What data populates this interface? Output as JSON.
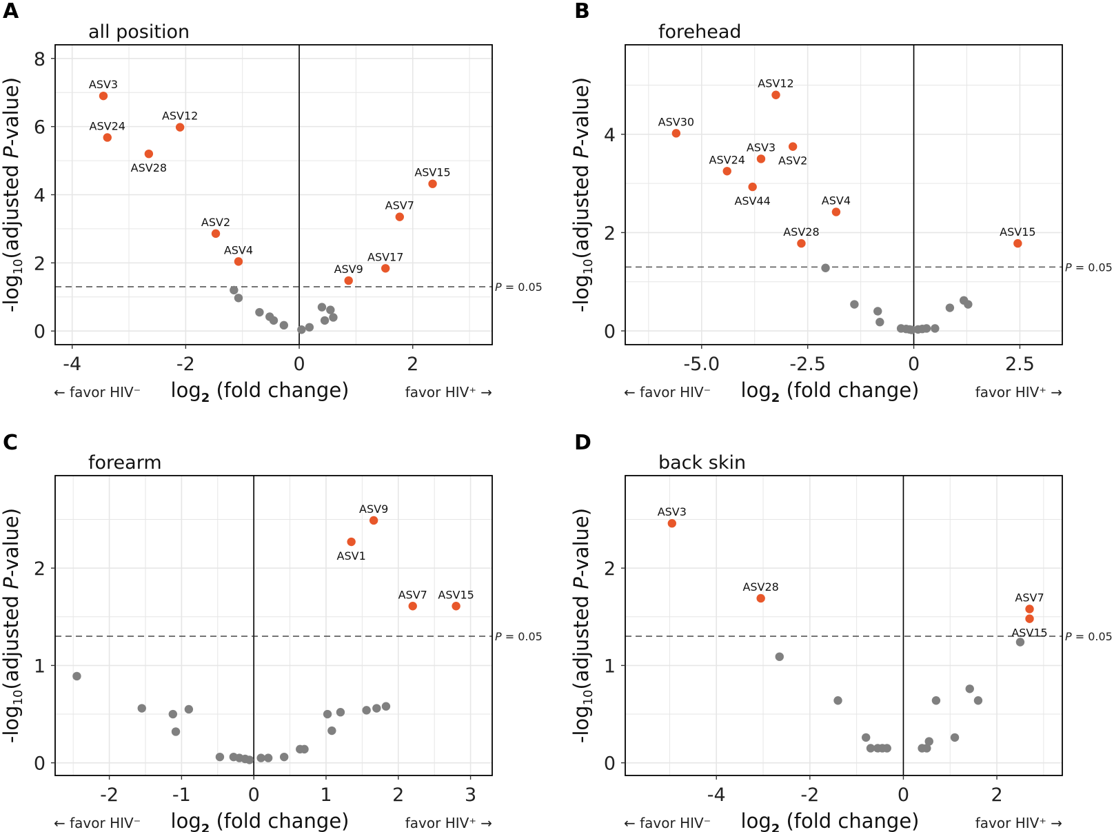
{
  "figure": {
    "x_axis_label": "log",
    "x_axis_sub": "2",
    "x_axis_suffix": " (fold change)",
    "y_axis_prefix": "-log",
    "y_axis_sub": "10",
    "y_axis_mid": "(adjusted ",
    "y_axis_italic": "P",
    "y_axis_suffix": "-value)",
    "favor_left": "← favor HIV⁻",
    "favor_right": "favor HIV⁺ →",
    "threshold_label": "P = 0.05",
    "colors": {
      "significant": "#E8572A",
      "nonsignificant": "#808080",
      "grid": "#E6E6E6",
      "axis": "#000000"
    }
  },
  "chart_data": [
    {
      "type": "scatter",
      "panel": "A",
      "title": "all position",
      "xlim": [
        -4.3,
        3.4
      ],
      "ylim": [
        -0.4,
        8.4
      ],
      "xticks": [
        -4,
        -2,
        0,
        2
      ],
      "xtick_labels": [
        "-4",
        "-2",
        "0",
        "2"
      ],
      "yticks": [
        0,
        2,
        4,
        6,
        8
      ],
      "ytick_labels": [
        "0",
        "2",
        "4",
        "6",
        "8"
      ],
      "threshold_y": 1.3,
      "significant": [
        {
          "label": "ASV3",
          "x": -3.45,
          "y": 6.9,
          "pos": "above"
        },
        {
          "label": "ASV24",
          "x": -3.38,
          "y": 5.68,
          "pos": "above"
        },
        {
          "label": "ASV28",
          "x": -2.65,
          "y": 5.2,
          "pos": "below"
        },
        {
          "label": "ASV12",
          "x": -2.1,
          "y": 5.98,
          "pos": "above"
        },
        {
          "label": "ASV2",
          "x": -1.47,
          "y": 2.86,
          "pos": "above"
        },
        {
          "label": "ASV4",
          "x": -1.07,
          "y": 2.04,
          "pos": "above"
        },
        {
          "label": "ASV9",
          "x": 0.87,
          "y": 1.48,
          "pos": "above"
        },
        {
          "label": "ASV17",
          "x": 1.52,
          "y": 1.84,
          "pos": "above"
        },
        {
          "label": "ASV7",
          "x": 1.77,
          "y": 3.35,
          "pos": "above"
        },
        {
          "label": "ASV15",
          "x": 2.35,
          "y": 4.32,
          "pos": "above"
        }
      ],
      "nonsignificant": [
        {
          "x": -1.15,
          "y": 1.2
        },
        {
          "x": -1.07,
          "y": 0.97
        },
        {
          "x": -0.7,
          "y": 0.55
        },
        {
          "x": -0.52,
          "y": 0.42
        },
        {
          "x": -0.45,
          "y": 0.31
        },
        {
          "x": -0.27,
          "y": 0.17
        },
        {
          "x": 0.04,
          "y": 0.04
        },
        {
          "x": 0.18,
          "y": 0.11
        },
        {
          "x": 0.4,
          "y": 0.7
        },
        {
          "x": 0.45,
          "y": 0.31
        },
        {
          "x": 0.55,
          "y": 0.62
        },
        {
          "x": 0.6,
          "y": 0.4
        }
      ]
    },
    {
      "type": "scatter",
      "panel": "B",
      "title": "forehead",
      "xlim": [
        -6.8,
        3.5
      ],
      "ylim": [
        -0.28,
        5.82
      ],
      "xticks": [
        -5,
        -2.5,
        0,
        2.5
      ],
      "xtick_labels": [
        "-5.0",
        "-2.5",
        "0",
        "2.5"
      ],
      "yticks": [
        0,
        2,
        4
      ],
      "ytick_labels": [
        "0",
        "2",
        "4"
      ],
      "threshold_y": 1.3,
      "significant": [
        {
          "label": "ASV30",
          "x": -5.6,
          "y": 4.02,
          "pos": "above"
        },
        {
          "label": "ASV12",
          "x": -3.25,
          "y": 4.8,
          "pos": "above"
        },
        {
          "label": "ASV3",
          "x": -3.6,
          "y": 3.5,
          "pos": "above"
        },
        {
          "label": "ASV2",
          "x": -2.85,
          "y": 3.75,
          "pos": "below"
        },
        {
          "label": "ASV24",
          "x": -4.4,
          "y": 3.25,
          "pos": "above"
        },
        {
          "label": "ASV44",
          "x": -3.8,
          "y": 2.93,
          "pos": "below"
        },
        {
          "label": "ASV4",
          "x": -1.83,
          "y": 2.42,
          "pos": "above"
        },
        {
          "label": "ASV28",
          "x": -2.65,
          "y": 1.78,
          "pos": "above"
        },
        {
          "label": "ASV15",
          "x": 2.45,
          "y": 1.78,
          "pos": "above"
        }
      ],
      "nonsignificant": [
        {
          "x": -2.08,
          "y": 1.28
        },
        {
          "x": -1.4,
          "y": 0.54
        },
        {
          "x": -0.85,
          "y": 0.4
        },
        {
          "x": -0.8,
          "y": 0.18
        },
        {
          "x": -0.3,
          "y": 0.05
        },
        {
          "x": -0.18,
          "y": 0.04
        },
        {
          "x": -0.1,
          "y": 0.03
        },
        {
          "x": -0.05,
          "y": 0.02
        },
        {
          "x": 0.1,
          "y": 0.03
        },
        {
          "x": 0.2,
          "y": 0.04
        },
        {
          "x": 0.3,
          "y": 0.05
        },
        {
          "x": 0.5,
          "y": 0.05
        },
        {
          "x": 0.85,
          "y": 0.47
        },
        {
          "x": 1.18,
          "y": 0.62
        },
        {
          "x": 1.28,
          "y": 0.54
        }
      ]
    },
    {
      "type": "scatter",
      "panel": "C",
      "title": "forearm",
      "xlim": [
        -2.75,
        3.3
      ],
      "ylim": [
        -0.13,
        2.95
      ],
      "xticks": [
        -2,
        -1,
        0,
        1,
        2,
        3
      ],
      "xtick_labels": [
        "-2",
        "-1",
        "0",
        "1",
        "2",
        "3"
      ],
      "yticks": [
        0,
        1,
        2
      ],
      "ytick_labels": [
        "0",
        "1",
        "2"
      ],
      "threshold_y": 1.3,
      "significant": [
        {
          "label": "ASV9",
          "x": 1.66,
          "y": 2.49,
          "pos": "above"
        },
        {
          "label": "ASV1",
          "x": 1.35,
          "y": 2.27,
          "pos": "below"
        },
        {
          "label": "ASV7",
          "x": 2.2,
          "y": 1.61,
          "pos": "above"
        },
        {
          "label": "ASV15",
          "x": 2.8,
          "y": 1.61,
          "pos": "above"
        }
      ],
      "nonsignificant": [
        {
          "x": -2.45,
          "y": 0.89
        },
        {
          "x": -1.55,
          "y": 0.56
        },
        {
          "x": -1.12,
          "y": 0.5
        },
        {
          "x": -1.08,
          "y": 0.32
        },
        {
          "x": -0.9,
          "y": 0.55
        },
        {
          "x": -0.47,
          "y": 0.06
        },
        {
          "x": -0.28,
          "y": 0.06
        },
        {
          "x": -0.2,
          "y": 0.05
        },
        {
          "x": -0.12,
          "y": 0.04
        },
        {
          "x": -0.06,
          "y": 0.03
        },
        {
          "x": 0.1,
          "y": 0.05
        },
        {
          "x": 0.2,
          "y": 0.05
        },
        {
          "x": 0.42,
          "y": 0.06
        },
        {
          "x": 0.64,
          "y": 0.14
        },
        {
          "x": 0.7,
          "y": 0.14
        },
        {
          "x": 1.02,
          "y": 0.5
        },
        {
          "x": 1.08,
          "y": 0.33
        },
        {
          "x": 1.2,
          "y": 0.52
        },
        {
          "x": 1.56,
          "y": 0.54
        },
        {
          "x": 1.7,
          "y": 0.56
        },
        {
          "x": 1.83,
          "y": 0.58
        }
      ]
    },
    {
      "type": "scatter",
      "panel": "D",
      "title": "back skin",
      "xlim": [
        -5.95,
        3.4
      ],
      "ylim": [
        -0.13,
        2.95
      ],
      "xticks": [
        -4,
        -2,
        0,
        2
      ],
      "xtick_labels": [
        "-4",
        "-2",
        "0",
        "2"
      ],
      "yticks": [
        0,
        1,
        2
      ],
      "ytick_labels": [
        "0",
        "1",
        "2"
      ],
      "threshold_y": 1.3,
      "significant": [
        {
          "label": "ASV3",
          "x": -4.95,
          "y": 2.46,
          "pos": "above"
        },
        {
          "label": "ASV28",
          "x": -3.05,
          "y": 1.69,
          "pos": "above"
        },
        {
          "label": "ASV7",
          "x": 2.7,
          "y": 1.58,
          "pos": "above"
        },
        {
          "label": "ASV15",
          "x": 2.7,
          "y": 1.48,
          "pos": "below"
        }
      ],
      "nonsignificant": [
        {
          "x": -2.65,
          "y": 1.09
        },
        {
          "x": -1.4,
          "y": 0.64
        },
        {
          "x": -0.8,
          "y": 0.26
        },
        {
          "x": -0.7,
          "y": 0.15
        },
        {
          "x": -0.55,
          "y": 0.15
        },
        {
          "x": -0.45,
          "y": 0.15
        },
        {
          "x": -0.35,
          "y": 0.15
        },
        {
          "x": 0.4,
          "y": 0.15
        },
        {
          "x": 0.5,
          "y": 0.15
        },
        {
          "x": 0.55,
          "y": 0.22
        },
        {
          "x": 0.7,
          "y": 0.64
        },
        {
          "x": 1.1,
          "y": 0.26
        },
        {
          "x": 1.42,
          "y": 0.76
        },
        {
          "x": 1.6,
          "y": 0.64
        },
        {
          "x": 2.5,
          "y": 1.24
        }
      ]
    }
  ]
}
